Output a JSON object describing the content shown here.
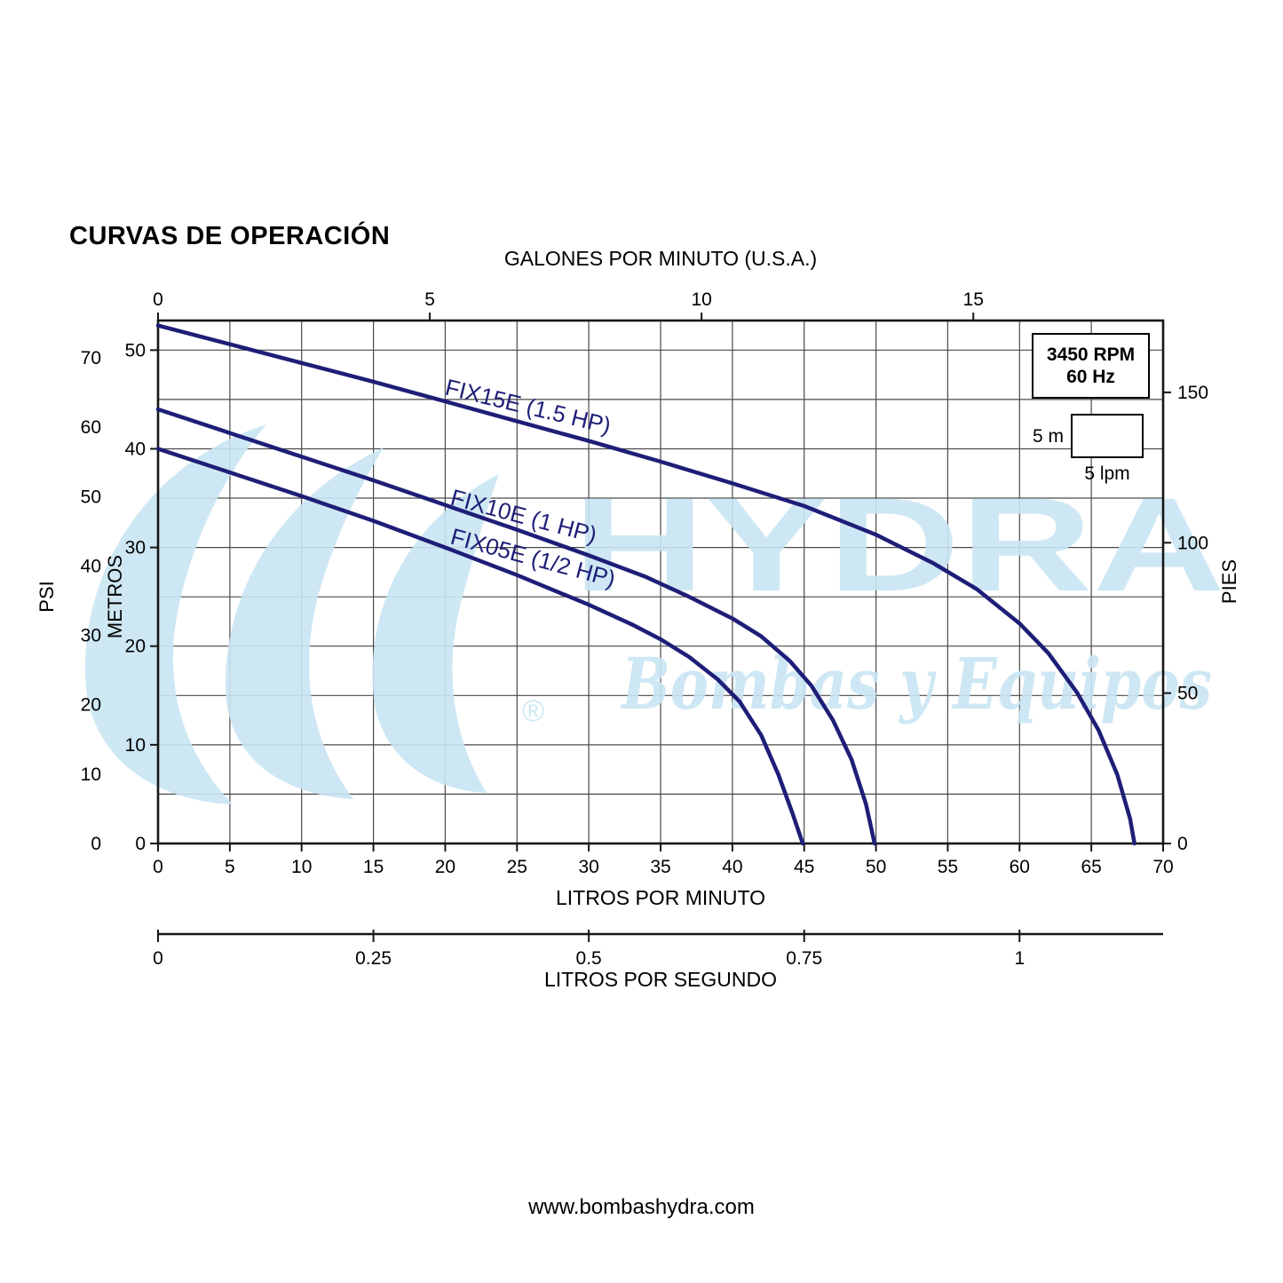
{
  "title": "CURVAS DE OPERACIÓN",
  "annotations": {
    "rpm_line1": "3450 RPM",
    "rpm_line2": "60 Hz",
    "scale_vertical": "5 m",
    "scale_horizontal": "5 lpm",
    "registered_mark": "®"
  },
  "watermark": {
    "line1": "HYDRA",
    "line2": "Bombas y Equipos",
    "color": "#c9e5f3"
  },
  "footer": {
    "url": "www.bombashydra.com"
  },
  "chart_data": {
    "type": "line",
    "title": "CURVAS DE OPERACIÓN",
    "curve_color": "#1e1e78",
    "grid": true,
    "rpm_note": "3450 RPM 60 Hz",
    "axes": {
      "top_gpm": {
        "label": "GALONES POR MINUTO (U.S.A.)",
        "unit": "gal/min",
        "ticks": [
          0,
          5,
          10,
          15
        ]
      },
      "bottom_lpm": {
        "label": "LITROS POR MINUTO",
        "unit": "L/min",
        "range": [
          0,
          70
        ],
        "ticks": [
          0,
          5,
          10,
          15,
          20,
          25,
          30,
          35,
          40,
          45,
          50,
          55,
          60,
          65,
          70
        ]
      },
      "bottom_lps": {
        "label": "LITROS POR SEGUNDO",
        "unit": "L/s",
        "ticks": [
          0,
          0.25,
          0.5,
          0.75,
          1
        ]
      },
      "left_psi": {
        "label": "PSI",
        "ticks": [
          0,
          10,
          20,
          30,
          40,
          50,
          60,
          70
        ]
      },
      "left_metros": {
        "label": "METROS",
        "range": [
          0,
          53
        ],
        "ticks": [
          0,
          10,
          20,
          30,
          40,
          50
        ]
      },
      "right_pies": {
        "label": "PIES",
        "ticks": [
          0,
          50,
          100,
          150
        ]
      }
    },
    "series": [
      {
        "id": "fix15e",
        "name": "FIX15E (1.5 HP)",
        "points": [
          [
            0,
            52.5
          ],
          [
            5,
            50.6
          ],
          [
            10,
            48.7
          ],
          [
            15,
            46.8
          ],
          [
            20,
            44.8
          ],
          [
            25,
            42.8
          ],
          [
            30,
            40.8
          ],
          [
            35,
            38.7
          ],
          [
            40,
            36.5
          ],
          [
            45,
            34.2
          ],
          [
            50,
            31.3
          ],
          [
            54,
            28.4
          ],
          [
            57,
            25.8
          ],
          [
            60,
            22.3
          ],
          [
            62,
            19.3
          ],
          [
            64,
            15.3
          ],
          [
            65.5,
            11.5
          ],
          [
            66.8,
            7
          ],
          [
            67.7,
            2.5
          ],
          [
            68,
            0
          ]
        ]
      },
      {
        "id": "fix10e",
        "name": "FIX10E (1 HP)",
        "points": [
          [
            0,
            44
          ],
          [
            5,
            41.6
          ],
          [
            10,
            39.2
          ],
          [
            15,
            36.8
          ],
          [
            20,
            34.3
          ],
          [
            25,
            31.8
          ],
          [
            30,
            29.2
          ],
          [
            34,
            27
          ],
          [
            37,
            25
          ],
          [
            40,
            22.8
          ],
          [
            42,
            21
          ],
          [
            44,
            18.5
          ],
          [
            45.5,
            16
          ],
          [
            47,
            12.5
          ],
          [
            48.3,
            8.5
          ],
          [
            49.3,
            4
          ],
          [
            49.9,
            0
          ]
        ]
      },
      {
        "id": "fix05e",
        "name": "FIX05E (1/2 HP)",
        "points": [
          [
            0,
            40
          ],
          [
            5,
            37.6
          ],
          [
            10,
            35.2
          ],
          [
            15,
            32.7
          ],
          [
            20,
            30
          ],
          [
            25,
            27.2
          ],
          [
            30,
            24.2
          ],
          [
            33,
            22.2
          ],
          [
            35,
            20.7
          ],
          [
            37,
            18.9
          ],
          [
            39,
            16.6
          ],
          [
            40.5,
            14.4
          ],
          [
            42,
            11
          ],
          [
            43.2,
            7
          ],
          [
            44.2,
            3
          ],
          [
            44.9,
            0
          ]
        ]
      }
    ]
  }
}
